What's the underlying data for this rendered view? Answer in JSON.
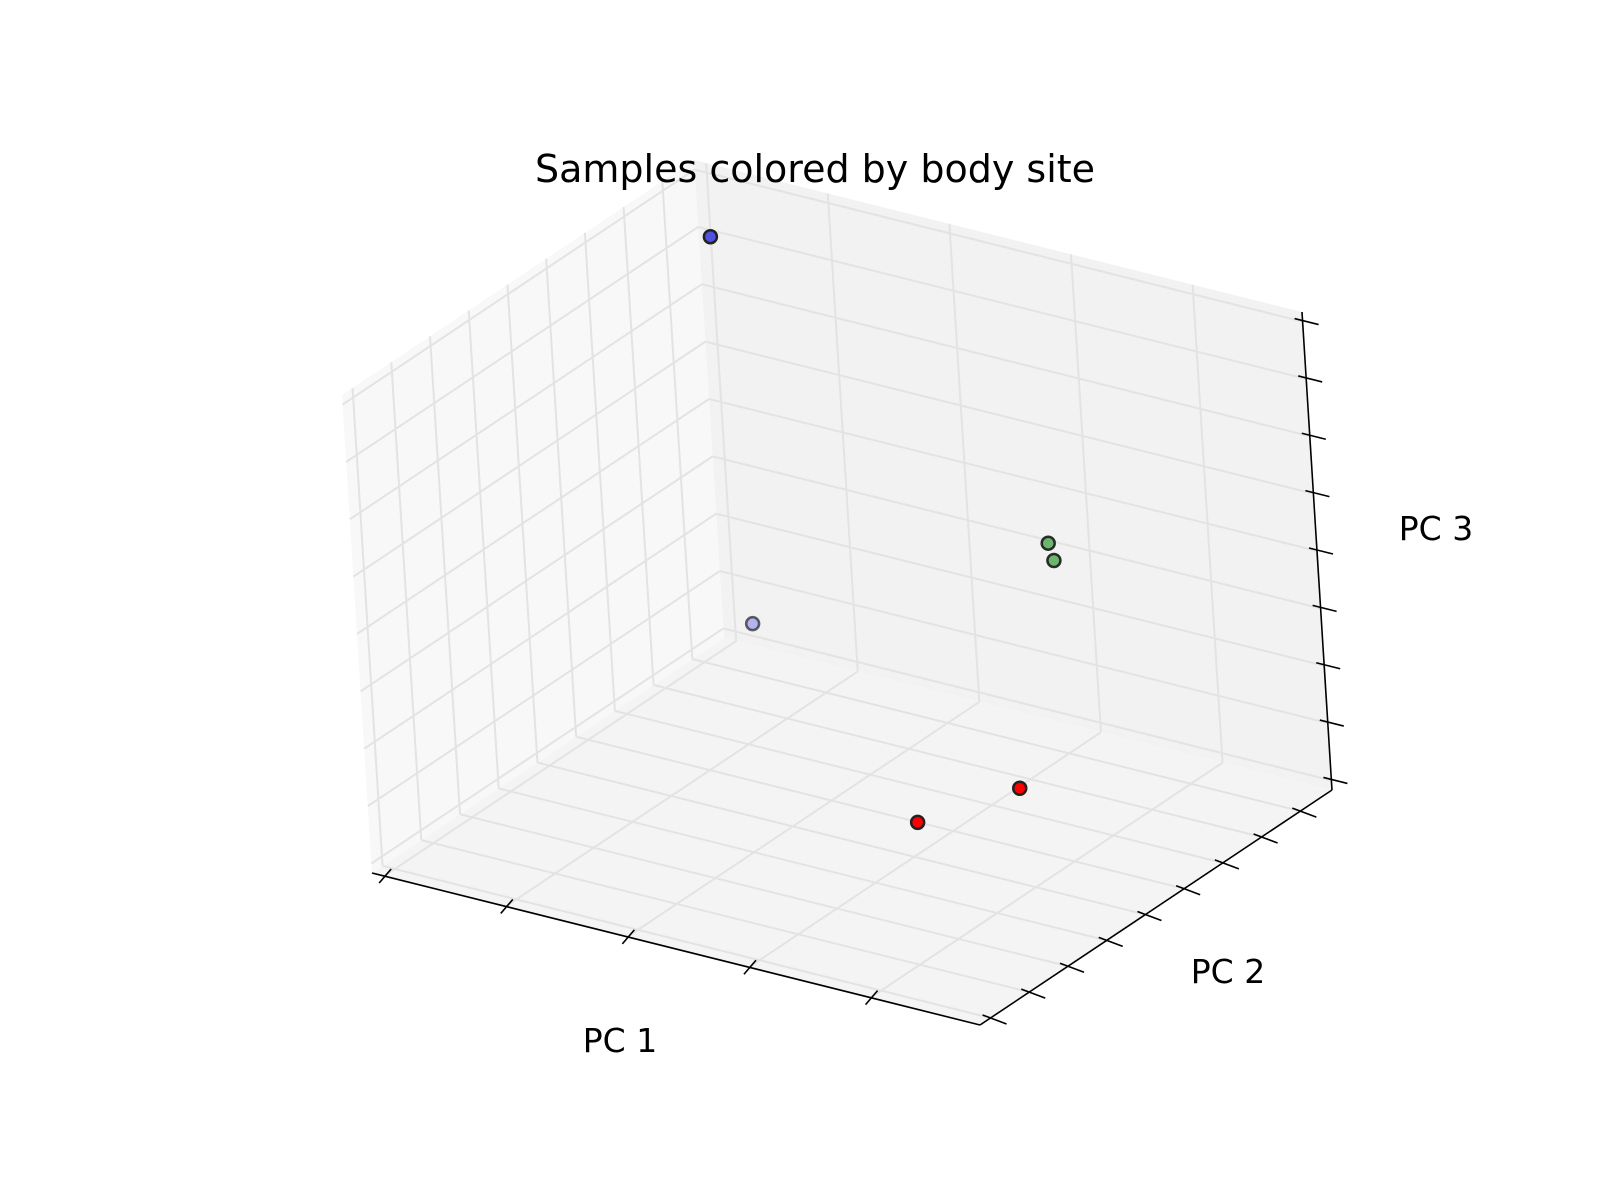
{
  "chart_data": {
    "type": "scatter",
    "projection": "3d",
    "title": "Samples colored by body site",
    "xlabel": "PC 1",
    "ylabel": "PC 2",
    "zlabel": "PC 3",
    "tick_labels_shown": false,
    "grid": true,
    "xlim": [
      0,
      1
    ],
    "ylim": [
      0,
      1
    ],
    "zlim": [
      0,
      1
    ],
    "points": [
      {
        "x": 0.05,
        "y": 0.95,
        "z": 0.88,
        "color": "#4040e0",
        "opacity": 0.9
      },
      {
        "x": 0.08,
        "y": 0.95,
        "z": 0.08,
        "color": "#8888ee",
        "opacity": 0.6
      },
      {
        "x": 0.58,
        "y": 0.55,
        "z": 0.02,
        "color": "#ff0000",
        "opacity": 1.0
      },
      {
        "x": 0.65,
        "y": 0.72,
        "z": 0.03,
        "color": "#ff0000",
        "opacity": 1.0
      },
      {
        "x": 0.95,
        "y": 0.35,
        "z": 0.82,
        "color": "#55aa55",
        "opacity": 0.85
      },
      {
        "x": 0.97,
        "y": 0.33,
        "z": 0.8,
        "color": "#55aa55",
        "opacity": 0.85
      }
    ]
  }
}
